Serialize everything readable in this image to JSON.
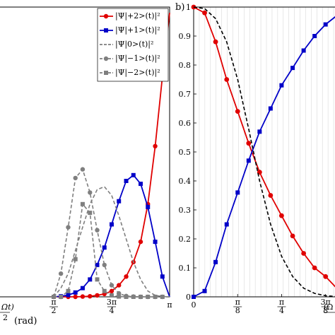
{
  "chart_data": [
    {
      "panel": "left",
      "type": "line",
      "xlim": [
        0.0,
        3.1416
      ],
      "ylim": [
        0,
        1
      ],
      "xticks": [
        {
          "value": 1.5708,
          "label": "π/2"
        },
        {
          "value": 2.3562,
          "label": "3π/4"
        },
        {
          "value": 3.1416,
          "label": "π"
        }
      ],
      "x_label_left_stub": "Ωt)",
      "x_label_left_denominator": "2",
      "x_label_left_unit": "(rad)",
      "legend": [
        {
          "key": "p2",
          "label": "|Ψ|+2>(t)|²",
          "style": "red-circle-solid"
        },
        {
          "key": "p1",
          "label": "|Ψ|+1>(t)|²",
          "style": "blue-square-solid"
        },
        {
          "key": "z0",
          "label": "|Ψ|0>(t)|²",
          "style": "gray-dashed"
        },
        {
          "key": "m1",
          "label": "|Ψ|−1>(t)|²",
          "style": "gray-circle-dashed"
        },
        {
          "key": "m2",
          "label": "|Ψ|−2>(t)|²",
          "style": "gray-square-dashed"
        }
      ],
      "series": [
        {
          "key": "p2",
          "color": "#e00000",
          "marker": "circle",
          "dash": false,
          "x": [
            1.571,
            1.668,
            1.767,
            1.865,
            1.963,
            2.062,
            2.16,
            2.258,
            2.356,
            2.454,
            2.553,
            2.651,
            2.749,
            2.847,
            2.946,
            3.044,
            3.142
          ],
          "y": [
            0.0,
            0.0,
            0.0,
            0.0,
            0.001,
            0.002,
            0.005,
            0.01,
            0.02,
            0.04,
            0.07,
            0.12,
            0.19,
            0.32,
            0.52,
            0.76,
            0.98
          ]
        },
        {
          "key": "p1",
          "color": "#0000c8",
          "marker": "square",
          "dash": false,
          "x": [
            1.571,
            1.668,
            1.767,
            1.865,
            1.963,
            2.062,
            2.16,
            2.258,
            2.356,
            2.454,
            2.553,
            2.651,
            2.749,
            2.847,
            2.946,
            3.044,
            3.142
          ],
          "y": [
            0.0,
            0.002,
            0.006,
            0.015,
            0.03,
            0.06,
            0.11,
            0.17,
            0.25,
            0.33,
            0.4,
            0.42,
            0.39,
            0.31,
            0.19,
            0.07,
            0.0
          ]
        },
        {
          "key": "z0",
          "color": "#7f7f7f",
          "marker": "none",
          "dash": true,
          "x": [
            1.571,
            1.668,
            1.767,
            1.865,
            1.963,
            2.062,
            2.16,
            2.258,
            2.356,
            2.454,
            2.553,
            2.651,
            2.749,
            2.847,
            2.946,
            3.044,
            3.142
          ],
          "y": [
            0.0,
            0.03,
            0.08,
            0.16,
            0.24,
            0.32,
            0.37,
            0.38,
            0.35,
            0.28,
            0.2,
            0.12,
            0.06,
            0.02,
            0.005,
            0.001,
            0.0
          ]
        },
        {
          "key": "m1",
          "color": "#7f7f7f",
          "marker": "circle",
          "dash": true,
          "x": [
            1.571,
            1.668,
            1.767,
            1.865,
            1.963,
            2.062,
            2.16,
            2.258,
            2.356,
            2.454,
            2.553,
            2.651,
            2.749,
            2.847,
            2.946,
            3.044,
            3.142
          ],
          "y": [
            0.0,
            0.08,
            0.24,
            0.41,
            0.44,
            0.36,
            0.23,
            0.11,
            0.04,
            0.012,
            0.003,
            0.001,
            0.0,
            0.0,
            0.0,
            0.0,
            0.0
          ]
        },
        {
          "key": "m2",
          "color": "#7f7f7f",
          "marker": "square",
          "dash": true,
          "x": [
            1.571,
            1.668,
            1.767,
            1.865,
            1.963,
            2.062,
            2.16,
            2.258,
            2.356,
            2.454,
            2.553,
            2.651,
            2.749,
            2.847,
            2.946,
            3.044,
            3.142
          ],
          "y": [
            0.0,
            0.0,
            0.02,
            0.13,
            0.32,
            0.29,
            0.06,
            0.02,
            0.005,
            0.001,
            0.0,
            0.0,
            0.0,
            0.0,
            0.0,
            0.0,
            0.0
          ]
        }
      ]
    },
    {
      "panel": "right",
      "type": "line",
      "panel_label": "b)",
      "xlim": [
        0.0,
        1.3
      ],
      "ylim": [
        0,
        1
      ],
      "xticks": [
        {
          "value": 0,
          "label": "0"
        },
        {
          "value": 0.3927,
          "label": "π/8"
        },
        {
          "value": 0.7854,
          "label": "π/4"
        },
        {
          "value": 1.1781,
          "label": "3π/8"
        }
      ],
      "yticks": [
        {
          "value": 0,
          "label": "0"
        },
        {
          "value": 0.1,
          "label": "0.1"
        },
        {
          "value": 0.2,
          "label": "0.2"
        },
        {
          "value": 0.3,
          "label": "0.3"
        },
        {
          "value": 0.4,
          "label": "0.4"
        },
        {
          "value": 0.5,
          "label": "0.5"
        },
        {
          "value": 0.6,
          "label": "0.6"
        },
        {
          "value": 0.7,
          "label": "0.7"
        },
        {
          "value": 0.8,
          "label": "0.8"
        },
        {
          "value": 0.9,
          "label": "0.9"
        },
        {
          "value": 1,
          "label": "1"
        }
      ],
      "x_label_right_stub": "(Ω",
      "series": [
        {
          "key": "red",
          "color": "#e00000",
          "marker": "circle",
          "dash": false,
          "x": [
            0.0,
            0.098,
            0.196,
            0.295,
            0.393,
            0.491,
            0.589,
            0.687,
            0.785,
            0.884,
            0.982,
            1.08,
            1.178,
            1.276
          ],
          "y": [
            1.0,
            0.98,
            0.88,
            0.75,
            0.64,
            0.53,
            0.43,
            0.35,
            0.28,
            0.21,
            0.15,
            0.1,
            0.07,
            0.03
          ]
        },
        {
          "key": "blue",
          "color": "#0000c8",
          "marker": "square",
          "dash": false,
          "x": [
            0.0,
            0.098,
            0.196,
            0.295,
            0.393,
            0.491,
            0.589,
            0.687,
            0.785,
            0.884,
            0.982,
            1.08,
            1.178,
            1.276
          ],
          "y": [
            0.0,
            0.02,
            0.12,
            0.25,
            0.36,
            0.47,
            0.57,
            0.65,
            0.73,
            0.79,
            0.85,
            0.9,
            0.94,
            0.97
          ]
        },
        {
          "key": "dashed",
          "color": "#000000",
          "marker": "none",
          "dash": true,
          "x": [
            0.0,
            0.098,
            0.196,
            0.295,
            0.393,
            0.491,
            0.589,
            0.687,
            0.785,
            0.884,
            0.982,
            1.08,
            1.178,
            1.276
          ],
          "y": [
            1.0,
            0.995,
            0.96,
            0.88,
            0.75,
            0.58,
            0.4,
            0.25,
            0.14,
            0.07,
            0.03,
            0.012,
            0.004,
            0.001
          ]
        }
      ]
    }
  ]
}
